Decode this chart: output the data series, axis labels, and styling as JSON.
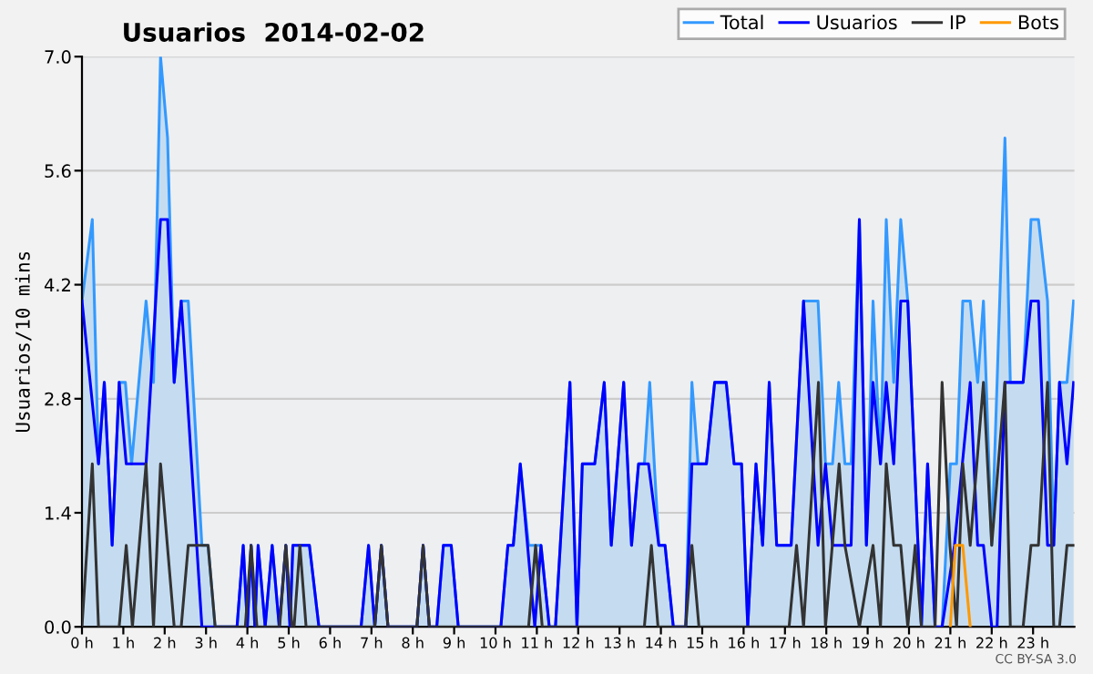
{
  "chart_data": {
    "type": "line",
    "title": "Usuarios  2014-02-02",
    "ylabel": "Usuarios/10 mins",
    "annotations": [
      "CC BY-SA 3.0"
    ],
    "xlim": [
      0,
      24
    ],
    "xticks": [
      {
        "value": 0,
        "label": "0 h"
      },
      {
        "value": 1,
        "label": "1 h"
      },
      {
        "value": 2,
        "label": "2 h"
      },
      {
        "value": 3,
        "label": "3 h"
      },
      {
        "value": 4,
        "label": "4 h"
      },
      {
        "value": 5,
        "label": "5 h"
      },
      {
        "value": 6,
        "label": "6 h"
      },
      {
        "value": 7,
        "label": "7 h"
      },
      {
        "value": 8,
        "label": "8 h"
      },
      {
        "value": 9,
        "label": "9 h"
      },
      {
        "value": 10,
        "label": "10 h"
      },
      {
        "value": 11,
        "label": "11 h"
      },
      {
        "value": 12,
        "label": "12 h"
      },
      {
        "value": 13,
        "label": "13 h"
      },
      {
        "value": 14,
        "label": "14 h"
      },
      {
        "value": 15,
        "label": "15 h"
      },
      {
        "value": 16,
        "label": "16 h"
      },
      {
        "value": 17,
        "label": "17 h"
      },
      {
        "value": 18,
        "label": "18 h"
      },
      {
        "value": 19,
        "label": "19 h"
      },
      {
        "value": 20,
        "label": "20 h"
      },
      {
        "value": 21,
        "label": "21 h"
      },
      {
        "value": 22,
        "label": "22 h"
      },
      {
        "value": 23,
        "label": "23 h"
      }
    ],
    "ylim": [
      0,
      7
    ],
    "yticks": [
      {
        "value": 0,
        "label": "0.0"
      },
      1.4,
      2.8,
      4.2,
      5.6,
      {
        "value": 7,
        "label": "7.0"
      }
    ],
    "grid": "y",
    "legend": "top right",
    "marker": "none",
    "line_style": "solid",
    "series": [
      {
        "name": "Total",
        "color": "#3399ff",
        "type": "area",
        "x": [
          0,
          0.25,
          0.4,
          0.54,
          0.73,
          0.9,
          1.05,
          1.2,
          1.55,
          1.73,
          1.9,
          2.07,
          2.23,
          2.4,
          2.57,
          2.9,
          3.05,
          3.22,
          3.75,
          3.9,
          4.0,
          4.09,
          4.18,
          4.26,
          4.43,
          4.6,
          4.77,
          4.93,
          5.03,
          5.1,
          5.5,
          5.73,
          6.75,
          6.93,
          7.08,
          7.24,
          7.4,
          8.1,
          8.25,
          8.4,
          8.58,
          8.74,
          8.93,
          9.1,
          10.13,
          10.3,
          10.43,
          10.6,
          10.8,
          11.1,
          11.3,
          11.45,
          11.8,
          11.97,
          12.1,
          12.4,
          12.63,
          12.8,
          13.1,
          13.29,
          13.46,
          13.6,
          13.73,
          13.95,
          14.1,
          14.3,
          14.6,
          14.75,
          14.9,
          15.1,
          15.3,
          15.58,
          15.77,
          15.95,
          16.1,
          16.3,
          16.46,
          16.62,
          16.8,
          17.15,
          17.45,
          17.8,
          17.98,
          18.15,
          18.3,
          18.45,
          18.6,
          18.8,
          18.97,
          19.13,
          19.31,
          19.45,
          19.63,
          19.8,
          19.97,
          20.3,
          20.45,
          20.63,
          20.8,
          21.0,
          21.15,
          21.3,
          21.48,
          21.66,
          21.8,
          22.0,
          22.13,
          22.32,
          22.45,
          22.76,
          22.95,
          23.13,
          23.35,
          23.5,
          23.64,
          23.82,
          23.98
        ],
        "values": [
          4,
          5,
          2,
          3,
          1,
          3,
          3,
          2,
          4,
          3,
          7,
          6,
          3,
          4,
          4,
          1,
          1,
          0,
          0,
          1,
          0,
          1,
          0,
          1,
          0,
          1,
          0,
          1,
          0,
          1,
          1,
          0,
          0,
          1,
          0,
          1,
          0,
          0,
          1,
          0,
          0,
          1,
          1,
          0,
          0,
          1,
          1,
          2,
          1,
          1,
          0,
          0,
          3,
          0,
          2,
          2,
          3,
          1,
          3,
          1,
          2,
          2,
          3,
          1,
          1,
          0,
          0,
          3,
          2,
          2,
          3,
          3,
          2,
          2,
          0,
          2,
          1,
          3,
          1,
          1,
          4,
          4,
          2,
          2,
          3,
          2,
          2,
          5,
          1,
          4,
          2,
          5,
          3,
          5,
          4,
          0,
          2,
          0,
          0,
          2,
          2,
          4,
          4,
          3,
          4,
          1,
          3,
          6,
          3,
          3,
          5,
          5,
          4,
          1,
          3,
          3,
          4
        ]
      },
      {
        "name": "Usuarios",
        "color": "#0000ff",
        "x": [
          0,
          0.4,
          0.54,
          0.73,
          0.9,
          1.07,
          1.55,
          1.9,
          2.07,
          2.23,
          2.4,
          2.9,
          3.75,
          3.9,
          4.0,
          4.09,
          4.18,
          4.26,
          4.43,
          4.6,
          4.77,
          4.93,
          5.03,
          5.1,
          5.5,
          5.73,
          6.75,
          6.93,
          7.08,
          7.24,
          7.4,
          8.1,
          8.25,
          8.4,
          8.58,
          8.74,
          8.93,
          9.1,
          10.13,
          10.3,
          10.43,
          10.6,
          10.95,
          11.1,
          11.3,
          11.45,
          11.8,
          11.97,
          12.1,
          12.4,
          12.63,
          12.8,
          13.1,
          13.29,
          13.46,
          13.7,
          13.95,
          14.1,
          14.3,
          14.6,
          14.75,
          15.1,
          15.3,
          15.58,
          15.77,
          15.95,
          16.1,
          16.3,
          16.46,
          16.62,
          16.8,
          17.15,
          17.45,
          17.8,
          17.98,
          18.15,
          18.6,
          18.8,
          18.97,
          19.13,
          19.31,
          19.45,
          19.63,
          19.8,
          19.97,
          20.3,
          20.45,
          20.63,
          20.8,
          21.1,
          21.48,
          21.66,
          21.8,
          22.0,
          22.13,
          22.32,
          22.76,
          22.95,
          23.13,
          23.35,
          23.5,
          23.64,
          23.82,
          23.98
        ],
        "values": [
          4,
          2,
          3,
          1,
          3,
          2,
          2,
          5,
          5,
          3,
          4,
          0,
          0,
          1,
          0,
          1,
          0,
          1,
          0,
          1,
          0,
          1,
          0,
          1,
          1,
          0,
          0,
          1,
          0,
          1,
          0,
          0,
          1,
          0,
          0,
          1,
          1,
          0,
          0,
          1,
          1,
          2,
          0,
          1,
          0,
          0,
          3,
          0,
          2,
          2,
          3,
          1,
          3,
          1,
          2,
          2,
          1,
          1,
          0,
          0,
          2,
          2,
          3,
          3,
          2,
          2,
          0,
          2,
          1,
          3,
          1,
          1,
          4,
          1,
          2,
          1,
          1,
          5,
          1,
          3,
          2,
          3,
          2,
          4,
          4,
          0,
          2,
          0,
          0,
          1,
          3,
          1,
          1,
          0,
          0,
          3,
          3,
          4,
          4,
          1,
          1,
          3,
          2,
          3
        ]
      },
      {
        "name": "IP",
        "color": "#333333",
        "x": [
          0,
          0.25,
          0.4,
          0.9,
          1.07,
          1.22,
          1.55,
          1.73,
          1.9,
          2.23,
          2.4,
          2.57,
          3.05,
          3.22,
          3.95,
          4.09,
          4.23,
          4.78,
          4.93,
          5.08,
          5.13,
          5.27,
          5.42,
          7.08,
          7.24,
          7.4,
          8.1,
          8.25,
          8.4,
          10.8,
          10.97,
          11.13,
          13.6,
          13.77,
          13.93,
          14.6,
          14.75,
          14.92,
          17.1,
          17.28,
          17.45,
          17.81,
          17.98,
          18.31,
          18.45,
          18.8,
          19.13,
          19.31,
          19.45,
          19.63,
          19.8,
          19.97,
          20.15,
          20.3,
          20.63,
          20.8,
          20.99,
          21.15,
          21.3,
          21.48,
          21.8,
          22.0,
          22.32,
          22.45,
          22.76,
          22.95,
          23.13,
          23.35,
          23.5,
          23.64,
          23.82,
          23.98
        ],
        "values": [
          0,
          2,
          0,
          0,
          1,
          0,
          2,
          0,
          2,
          0,
          0,
          1,
          1,
          0,
          0,
          1,
          0,
          0,
          1,
          0,
          0,
          1,
          0,
          0,
          1,
          0,
          0,
          1,
          0,
          0,
          1,
          0,
          0,
          1,
          0,
          0,
          1,
          0,
          0,
          1,
          0,
          3,
          0,
          2,
          1,
          0,
          1,
          0,
          2,
          1,
          1,
          0,
          1,
          0,
          0,
          3,
          1,
          0,
          2,
          1,
          3,
          1,
          3,
          0,
          0,
          1,
          1,
          3,
          0,
          0,
          1,
          1
        ]
      },
      {
        "name": "Bots",
        "color": "#ff9900",
        "x": [
          21.0,
          21.12,
          21.3,
          21.48
        ],
        "values": [
          0,
          1,
          1,
          0
        ]
      }
    ]
  }
}
